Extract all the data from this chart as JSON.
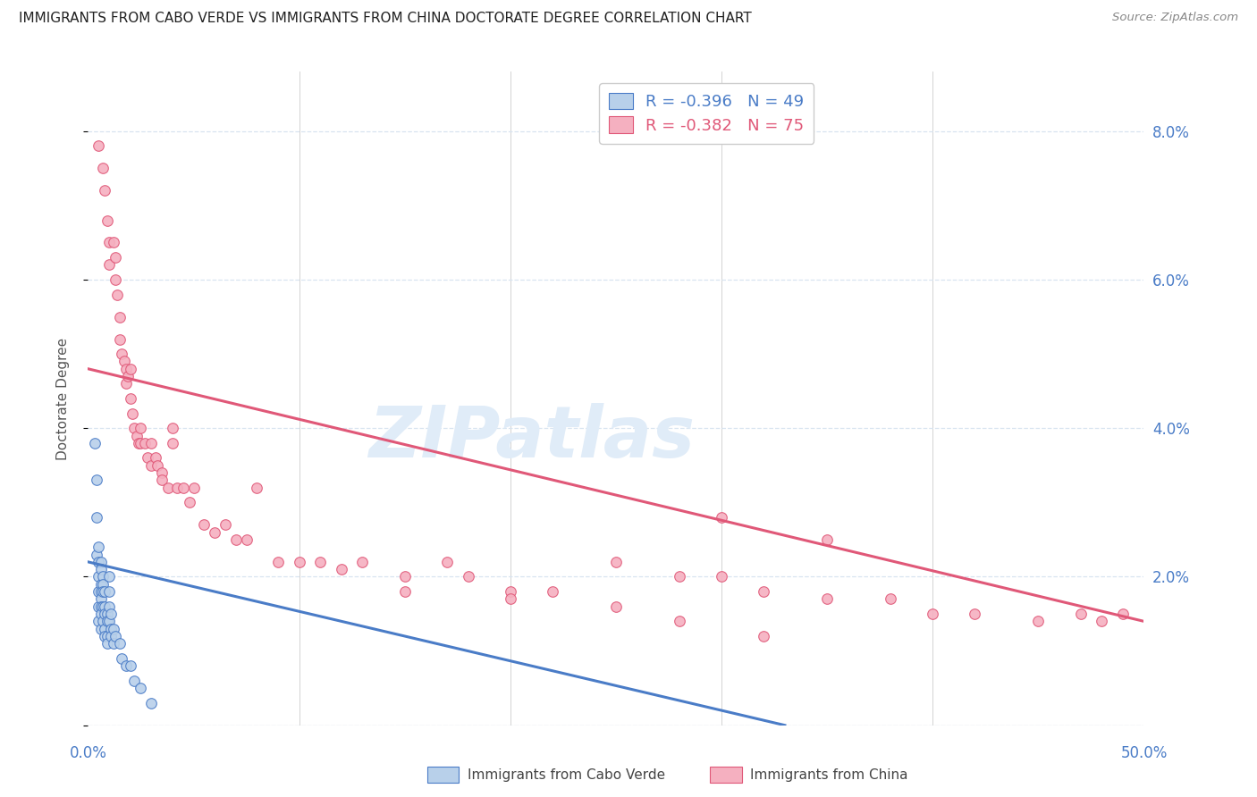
{
  "title": "IMMIGRANTS FROM CABO VERDE VS IMMIGRANTS FROM CHINA DOCTORATE DEGREE CORRELATION CHART",
  "source": "Source: ZipAtlas.com",
  "ylabel": "Doctorate Degree",
  "yticks": [
    0.0,
    0.02,
    0.04,
    0.06,
    0.08
  ],
  "ytick_labels": [
    "",
    "2.0%",
    "4.0%",
    "6.0%",
    "8.0%"
  ],
  "xticks": [
    0.0,
    0.1,
    0.2,
    0.3,
    0.4,
    0.5
  ],
  "xlim": [
    0.0,
    0.5
  ],
  "ylim": [
    0.0,
    0.088
  ],
  "legend_r_cabo": "-0.396",
  "legend_n_cabo": "49",
  "legend_r_china": "-0.382",
  "legend_n_china": "75",
  "color_cabo_fill": "#b8d0ea",
  "color_china_fill": "#f5b0c0",
  "color_cabo_line": "#4a7cc7",
  "color_china_line": "#e05878",
  "color_ytick": "#4a7cc7",
  "color_xtick": "#4a7cc7",
  "color_grid": "#d8e4f0",
  "watermark_text": "ZIPatlas",
  "watermark_color": "#e0ecf8",
  "cabo_x": [
    0.003,
    0.004,
    0.004,
    0.004,
    0.005,
    0.005,
    0.005,
    0.005,
    0.005,
    0.005,
    0.006,
    0.006,
    0.006,
    0.006,
    0.006,
    0.006,
    0.006,
    0.006,
    0.007,
    0.007,
    0.007,
    0.007,
    0.007,
    0.008,
    0.008,
    0.008,
    0.008,
    0.008,
    0.009,
    0.009,
    0.009,
    0.009,
    0.01,
    0.01,
    0.01,
    0.01,
    0.011,
    0.011,
    0.011,
    0.012,
    0.012,
    0.013,
    0.015,
    0.016,
    0.018,
    0.02,
    0.022,
    0.025,
    0.03
  ],
  "cabo_y": [
    0.038,
    0.033,
    0.028,
    0.023,
    0.024,
    0.022,
    0.02,
    0.018,
    0.016,
    0.014,
    0.022,
    0.021,
    0.019,
    0.018,
    0.017,
    0.016,
    0.015,
    0.013,
    0.02,
    0.019,
    0.018,
    0.016,
    0.014,
    0.018,
    0.016,
    0.015,
    0.013,
    0.012,
    0.015,
    0.014,
    0.012,
    0.011,
    0.02,
    0.018,
    0.016,
    0.014,
    0.015,
    0.013,
    0.012,
    0.013,
    0.011,
    0.012,
    0.011,
    0.009,
    0.008,
    0.008,
    0.006,
    0.005,
    0.003
  ],
  "china_x": [
    0.005,
    0.007,
    0.008,
    0.009,
    0.01,
    0.01,
    0.012,
    0.013,
    0.013,
    0.014,
    0.015,
    0.015,
    0.016,
    0.017,
    0.018,
    0.018,
    0.019,
    0.02,
    0.02,
    0.021,
    0.022,
    0.023,
    0.024,
    0.025,
    0.025,
    0.027,
    0.028,
    0.03,
    0.03,
    0.032,
    0.033,
    0.035,
    0.035,
    0.038,
    0.04,
    0.04,
    0.042,
    0.045,
    0.048,
    0.05,
    0.055,
    0.06,
    0.065,
    0.07,
    0.075,
    0.08,
    0.09,
    0.1,
    0.11,
    0.12,
    0.13,
    0.15,
    0.17,
    0.18,
    0.2,
    0.22,
    0.25,
    0.28,
    0.3,
    0.32,
    0.35,
    0.38,
    0.4,
    0.42,
    0.45,
    0.47,
    0.48,
    0.49,
    0.3,
    0.35,
    0.15,
    0.2,
    0.25,
    0.28,
    0.32
  ],
  "china_y": [
    0.078,
    0.075,
    0.072,
    0.068,
    0.065,
    0.062,
    0.065,
    0.063,
    0.06,
    0.058,
    0.055,
    0.052,
    0.05,
    0.049,
    0.048,
    0.046,
    0.047,
    0.048,
    0.044,
    0.042,
    0.04,
    0.039,
    0.038,
    0.04,
    0.038,
    0.038,
    0.036,
    0.038,
    0.035,
    0.036,
    0.035,
    0.034,
    0.033,
    0.032,
    0.04,
    0.038,
    0.032,
    0.032,
    0.03,
    0.032,
    0.027,
    0.026,
    0.027,
    0.025,
    0.025,
    0.032,
    0.022,
    0.022,
    0.022,
    0.021,
    0.022,
    0.02,
    0.022,
    0.02,
    0.018,
    0.018,
    0.022,
    0.02,
    0.02,
    0.018,
    0.017,
    0.017,
    0.015,
    0.015,
    0.014,
    0.015,
    0.014,
    0.015,
    0.028,
    0.025,
    0.018,
    0.017,
    0.016,
    0.014,
    0.012
  ],
  "cabo_trend_x": [
    0.0,
    0.33
  ],
  "cabo_trend_y": [
    0.022,
    0.0
  ],
  "china_trend_x": [
    0.0,
    0.5
  ],
  "china_trend_y": [
    0.048,
    0.014
  ]
}
